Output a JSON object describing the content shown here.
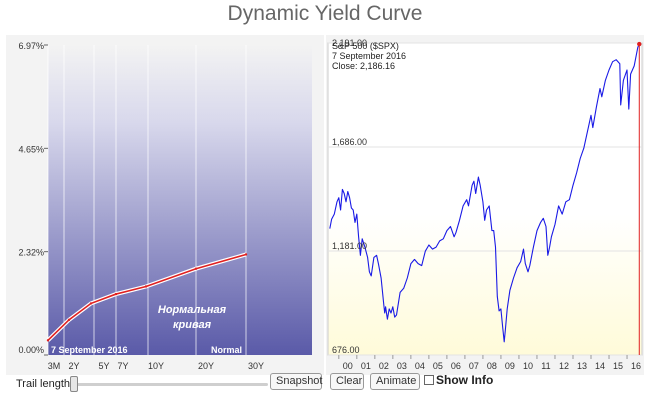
{
  "title": "Dynamic Yield Curve",
  "colors": {
    "curve": "#e02020",
    "spx_line": "#1a1ae6",
    "left_bg_dark": "#5a5aa8",
    "right_bg_light": "#fffbe0"
  },
  "controls": {
    "trail_label": "Trail length:",
    "trail_value": 0,
    "snapshot_label": "Snapshot",
    "clear_label": "Clear",
    "animate_label": "Animate",
    "show_info_label": "Show Info",
    "show_info_checked": false
  },
  "chart_data": [
    {
      "type": "line",
      "name": "yield-curve",
      "categories": [
        "3M",
        "2Y",
        "5Y",
        "7Y",
        "10Y",
        "20Y",
        "30Y"
      ],
      "x_maturity_years": [
        0.25,
        2,
        5,
        7,
        10,
        20,
        30
      ],
      "values": [
        0.33,
        0.79,
        1.16,
        1.37,
        1.54,
        1.94,
        2.26
      ],
      "yticks": [
        "6.97%",
        "4.65%",
        "2.32%",
        "0.00%"
      ],
      "ylim": [
        0,
        6.97
      ],
      "date_label": "7  September 2016",
      "annotation": "Нормальная кривая",
      "status_label": "Normal",
      "grid": true
    },
    {
      "type": "line",
      "name": "S&P 500 ($SPX)",
      "series_label": "S&P 500 ($SPX)",
      "date_label": "7  September 2016",
      "close_label": "Close: 2,186.16",
      "yticks": [
        "2,191.00",
        "1,686.00",
        "1,181.00",
        "676.00"
      ],
      "ylim": [
        676,
        2191
      ],
      "xticks": [
        "00",
        "01",
        "02",
        "03",
        "04",
        "05",
        "06",
        "07",
        "08",
        "09",
        "10",
        "11",
        "12",
        "13",
        "14",
        "15",
        "16"
      ],
      "x": [
        1999.5,
        1999.6,
        1999.75,
        1999.9,
        2000.0,
        2000.1,
        2000.2,
        2000.3,
        2000.4,
        2000.5,
        2000.6,
        2000.7,
        2000.8,
        2000.9,
        2001.0,
        2001.1,
        2001.2,
        2001.3,
        2001.45,
        2001.6,
        2001.7,
        2001.8,
        2001.95,
        2002.1,
        2002.2,
        2002.35,
        2002.5,
        2002.55,
        2002.6,
        2002.7,
        2002.8,
        2002.9,
        2003.0,
        2003.1,
        2003.2,
        2003.4,
        2003.6,
        2003.8,
        2004.0,
        2004.2,
        2004.4,
        2004.6,
        2004.8,
        2005.0,
        2005.2,
        2005.4,
        2005.6,
        2005.8,
        2006.0,
        2006.2,
        2006.4,
        2006.5,
        2006.7,
        2006.9,
        2007.1,
        2007.2,
        2007.4,
        2007.5,
        2007.6,
        2007.75,
        2007.85,
        2008.0,
        2008.1,
        2008.2,
        2008.35,
        2008.5,
        2008.6,
        2008.7,
        2008.8,
        2008.9,
        2009.0,
        2009.1,
        2009.18,
        2009.25,
        2009.35,
        2009.5,
        2009.7,
        2009.9,
        2010.1,
        2010.25,
        2010.35,
        2010.5,
        2010.6,
        2010.8,
        2011.0,
        2011.2,
        2011.35,
        2011.5,
        2011.6,
        2011.7,
        2011.8,
        2012.0,
        2012.2,
        2012.4,
        2012.6,
        2012.8,
        2013.0,
        2013.2,
        2013.4,
        2013.6,
        2013.8,
        2014.0,
        2014.1,
        2014.3,
        2014.5,
        2014.6,
        2014.8,
        2015.0,
        2015.2,
        2015.4,
        2015.6,
        2015.65,
        2015.8,
        2016.0,
        2016.1,
        2016.2,
        2016.4,
        2016.6,
        2016.68
      ],
      "values": [
        1290,
        1335,
        1360,
        1420,
        1440,
        1380,
        1480,
        1460,
        1420,
        1470,
        1440,
        1390,
        1380,
        1320,
        1360,
        1250,
        1160,
        1240,
        1200,
        1150,
        1080,
        1060,
        1150,
        1160,
        1120,
        1050,
        920,
        880,
        910,
        850,
        900,
        880,
        910,
        860,
        870,
        980,
        1000,
        1050,
        1120,
        1140,
        1120,
        1110,
        1180,
        1210,
        1190,
        1200,
        1230,
        1240,
        1280,
        1300,
        1250,
        1270,
        1330,
        1400,
        1430,
        1400,
        1500,
        1520,
        1460,
        1540,
        1500,
        1420,
        1330,
        1380,
        1400,
        1280,
        1280,
        1200,
        960,
        890,
        900,
        810,
        740,
        800,
        900,
        990,
        1050,
        1100,
        1130,
        1190,
        1120,
        1080,
        1110,
        1200,
        1280,
        1320,
        1340,
        1300,
        1160,
        1200,
        1250,
        1310,
        1400,
        1360,
        1420,
        1430,
        1500,
        1560,
        1630,
        1680,
        1760,
        1840,
        1780,
        1880,
        1970,
        1930,
        2010,
        2060,
        2100,
        2110,
        2090,
        1890,
        2010,
        2060,
        1870,
        2040,
        2080,
        2170,
        2186
      ]
    }
  ]
}
